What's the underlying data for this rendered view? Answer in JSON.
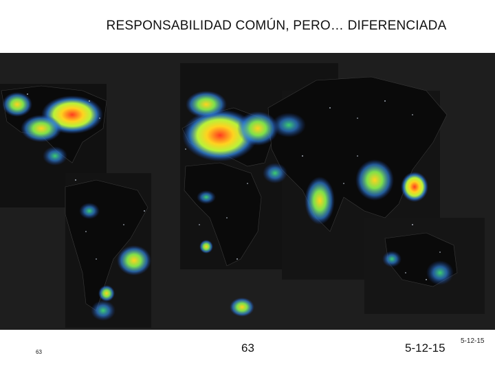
{
  "slide": {
    "title": "RESPONSABILIDAD COMÚN, PERO… DIFERENCIADA"
  },
  "map": {
    "description_icon": "world-night-lights-map",
    "background_color": "#1e1e1e",
    "light_colors": [
      "#ff3b1f",
      "#ffd21f",
      "#b8f23a",
      "#3ecf6a",
      "#2f7fd8",
      "#1a3f9a"
    ]
  },
  "footer": {
    "small_slide_number": "63",
    "slide_number": "63",
    "date_small": "5-12-15",
    "date": "5-12-15"
  }
}
